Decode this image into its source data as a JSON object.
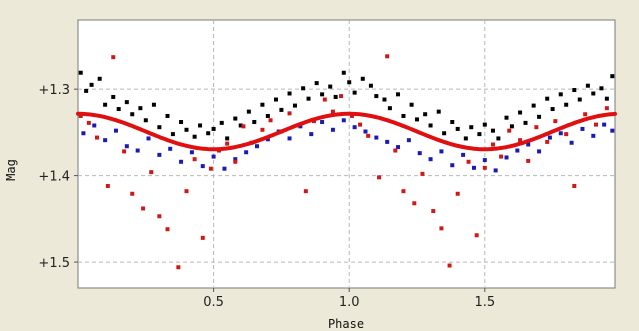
{
  "chart_data": {
    "type": "scatter",
    "title": "",
    "xlabel": "Phase",
    "ylabel": "Mag",
    "xlim": [
      0.0,
      1.98
    ],
    "ylim": [
      1.53,
      1.22
    ],
    "y_inverted": true,
    "grid": true,
    "grid_style": "dashed",
    "legend": "none",
    "x_ticks": [
      {
        "value": 0.5,
        "label": "0.5"
      },
      {
        "value": 1.0,
        "label": "1.0"
      },
      {
        "value": 1.5,
        "label": "1.5"
      }
    ],
    "y_ticks": [
      {
        "value": 1.3,
        "label": "+1.3"
      },
      {
        "value": 1.4,
        "label": "+1.4"
      },
      {
        "value": 1.5,
        "label": "+1.5"
      }
    ],
    "colors": {
      "background": "#ece9d8",
      "plot_area": "#ffffff",
      "grid": "#b8b8b8",
      "black_series": "#000000",
      "blue_series": "#1a1ab4",
      "red_series": "#d01818",
      "fit_line": "#e01010"
    },
    "series": [
      {
        "color": "#000000",
        "points": [
          [
            0.01,
            1.281
          ],
          [
            0.03,
            1.302
          ],
          [
            0.05,
            1.295
          ],
          [
            0.08,
            1.288
          ],
          [
            0.1,
            1.318
          ],
          [
            0.13,
            1.309
          ],
          [
            0.15,
            1.323
          ],
          [
            0.18,
            1.315
          ],
          [
            0.2,
            1.329
          ],
          [
            0.23,
            1.322
          ],
          [
            0.25,
            1.336
          ],
          [
            0.28,
            1.318
          ],
          [
            0.3,
            1.344
          ],
          [
            0.33,
            1.331
          ],
          [
            0.35,
            1.352
          ],
          [
            0.38,
            1.338
          ],
          [
            0.4,
            1.347
          ],
          [
            0.43,
            1.355
          ],
          [
            0.45,
            1.342
          ],
          [
            0.48,
            1.351
          ],
          [
            0.5,
            1.346
          ],
          [
            0.53,
            1.339
          ],
          [
            0.55,
            1.357
          ],
          [
            0.58,
            1.334
          ],
          [
            0.6,
            1.342
          ],
          [
            0.63,
            1.326
          ],
          [
            0.65,
            1.338
          ],
          [
            0.68,
            1.318
          ],
          [
            0.7,
            1.331
          ],
          [
            0.73,
            1.312
          ],
          [
            0.75,
            1.324
          ],
          [
            0.78,
            1.305
          ],
          [
            0.8,
            1.319
          ],
          [
            0.83,
            1.299
          ],
          [
            0.85,
            1.311
          ],
          [
            0.88,
            1.293
          ],
          [
            0.9,
            1.306
          ],
          [
            0.93,
            1.297
          ],
          [
            0.95,
            1.309
          ],
          [
            0.98,
            1.281
          ],
          [
            1.0,
            1.292
          ],
          [
            1.02,
            1.304
          ],
          [
            1.05,
            1.288
          ],
          [
            1.08,
            1.296
          ],
          [
            1.1,
            1.308
          ],
          [
            1.13,
            1.312
          ],
          [
            1.15,
            1.322
          ],
          [
            1.18,
            1.306
          ],
          [
            1.2,
            1.331
          ],
          [
            1.23,
            1.318
          ],
          [
            1.25,
            1.335
          ],
          [
            1.28,
            1.329
          ],
          [
            1.3,
            1.342
          ],
          [
            1.33,
            1.326
          ],
          [
            1.35,
            1.351
          ],
          [
            1.38,
            1.338
          ],
          [
            1.4,
            1.346
          ],
          [
            1.43,
            1.357
          ],
          [
            1.45,
            1.344
          ],
          [
            1.48,
            1.352
          ],
          [
            1.5,
            1.341
          ],
          [
            1.53,
            1.348
          ],
          [
            1.55,
            1.357
          ],
          [
            1.58,
            1.333
          ],
          [
            1.6,
            1.343
          ],
          [
            1.63,
            1.327
          ],
          [
            1.65,
            1.339
          ],
          [
            1.68,
            1.319
          ],
          [
            1.7,
            1.332
          ],
          [
            1.73,
            1.311
          ],
          [
            1.75,
            1.323
          ],
          [
            1.78,
            1.306
          ],
          [
            1.8,
            1.318
          ],
          [
            1.83,
            1.301
          ],
          [
            1.85,
            1.312
          ],
          [
            1.88,
            1.296
          ],
          [
            1.9,
            1.305
          ],
          [
            1.93,
            1.299
          ],
          [
            1.95,
            1.311
          ],
          [
            1.97,
            1.285
          ]
        ]
      },
      {
        "color": "#1a1ab4",
        "points": [
          [
            0.02,
            1.351
          ],
          [
            0.06,
            1.342
          ],
          [
            0.1,
            1.359
          ],
          [
            0.14,
            1.348
          ],
          [
            0.18,
            1.366
          ],
          [
            0.22,
            1.371
          ],
          [
            0.26,
            1.357
          ],
          [
            0.3,
            1.376
          ],
          [
            0.34,
            1.369
          ],
          [
            0.38,
            1.384
          ],
          [
            0.42,
            1.373
          ],
          [
            0.46,
            1.389
          ],
          [
            0.5,
            1.378
          ],
          [
            0.54,
            1.392
          ],
          [
            0.58,
            1.381
          ],
          [
            0.62,
            1.373
          ],
          [
            0.66,
            1.366
          ],
          [
            0.7,
            1.358
          ],
          [
            0.74,
            1.349
          ],
          [
            0.78,
            1.357
          ],
          [
            0.82,
            1.343
          ],
          [
            0.86,
            1.352
          ],
          [
            0.9,
            1.338
          ],
          [
            0.94,
            1.347
          ],
          [
            0.98,
            1.336
          ],
          [
            1.02,
            1.344
          ],
          [
            1.06,
            1.349
          ],
          [
            1.1,
            1.356
          ],
          [
            1.14,
            1.361
          ],
          [
            1.18,
            1.367
          ],
          [
            1.22,
            1.359
          ],
          [
            1.26,
            1.374
          ],
          [
            1.3,
            1.381
          ],
          [
            1.34,
            1.372
          ],
          [
            1.38,
            1.388
          ],
          [
            1.42,
            1.376
          ],
          [
            1.46,
            1.391
          ],
          [
            1.5,
            1.382
          ],
          [
            1.54,
            1.394
          ],
          [
            1.58,
            1.379
          ],
          [
            1.62,
            1.371
          ],
          [
            1.66,
            1.364
          ],
          [
            1.7,
            1.372
          ],
          [
            1.74,
            1.356
          ],
          [
            1.78,
            1.351
          ],
          [
            1.82,
            1.362
          ],
          [
            1.86,
            1.346
          ],
          [
            1.9,
            1.354
          ],
          [
            1.94,
            1.341
          ],
          [
            1.97,
            1.348
          ]
        ]
      },
      {
        "color": "#d01818",
        "points": [
          [
            0.01,
            1.331
          ],
          [
            0.04,
            1.339
          ],
          [
            0.07,
            1.356
          ],
          [
            0.11,
            1.412
          ],
          [
            0.13,
            1.263
          ],
          [
            0.17,
            1.372
          ],
          [
            0.2,
            1.421
          ],
          [
            0.24,
            1.438
          ],
          [
            0.27,
            1.396
          ],
          [
            0.3,
            1.447
          ],
          [
            0.33,
            1.462
          ],
          [
            0.37,
            1.506
          ],
          [
            0.4,
            1.418
          ],
          [
            0.43,
            1.381
          ],
          [
            0.46,
            1.472
          ],
          [
            0.49,
            1.392
          ],
          [
            0.52,
            1.371
          ],
          [
            0.55,
            1.363
          ],
          [
            0.58,
            1.384
          ],
          [
            0.61,
            1.343
          ],
          [
            0.64,
            1.362
          ],
          [
            0.68,
            1.347
          ],
          [
            0.71,
            1.336
          ],
          [
            0.75,
            1.349
          ],
          [
            0.78,
            1.328
          ],
          [
            0.81,
            1.342
          ],
          [
            0.84,
            1.418
          ],
          [
            0.87,
            1.337
          ],
          [
            0.91,
            1.312
          ],
          [
            0.94,
            1.326
          ],
          [
            0.97,
            1.308
          ],
          [
            1.01,
            1.331
          ],
          [
            1.04,
            1.341
          ],
          [
            1.07,
            1.354
          ],
          [
            1.11,
            1.402
          ],
          [
            1.14,
            1.262
          ],
          [
            1.17,
            1.371
          ],
          [
            1.2,
            1.418
          ],
          [
            1.24,
            1.432
          ],
          [
            1.27,
            1.398
          ],
          [
            1.31,
            1.441
          ],
          [
            1.34,
            1.461
          ],
          [
            1.37,
            1.504
          ],
          [
            1.4,
            1.421
          ],
          [
            1.44,
            1.384
          ],
          [
            1.47,
            1.469
          ],
          [
            1.5,
            1.391
          ],
          [
            1.53,
            1.364
          ],
          [
            1.56,
            1.378
          ],
          [
            1.59,
            1.348
          ],
          [
            1.63,
            1.359
          ],
          [
            1.66,
            1.383
          ],
          [
            1.69,
            1.344
          ],
          [
            1.73,
            1.361
          ],
          [
            1.76,
            1.337
          ],
          [
            1.8,
            1.352
          ],
          [
            1.83,
            1.412
          ],
          [
            1.87,
            1.329
          ],
          [
            1.91,
            1.341
          ],
          [
            1.95,
            1.322
          ]
        ]
      }
    ],
    "fit_curve": {
      "color": "#e01010",
      "mean": 1.349,
      "amplitude": 0.0205,
      "period": 1.0,
      "phase_of_minimum_brightness": 0.5
    }
  }
}
